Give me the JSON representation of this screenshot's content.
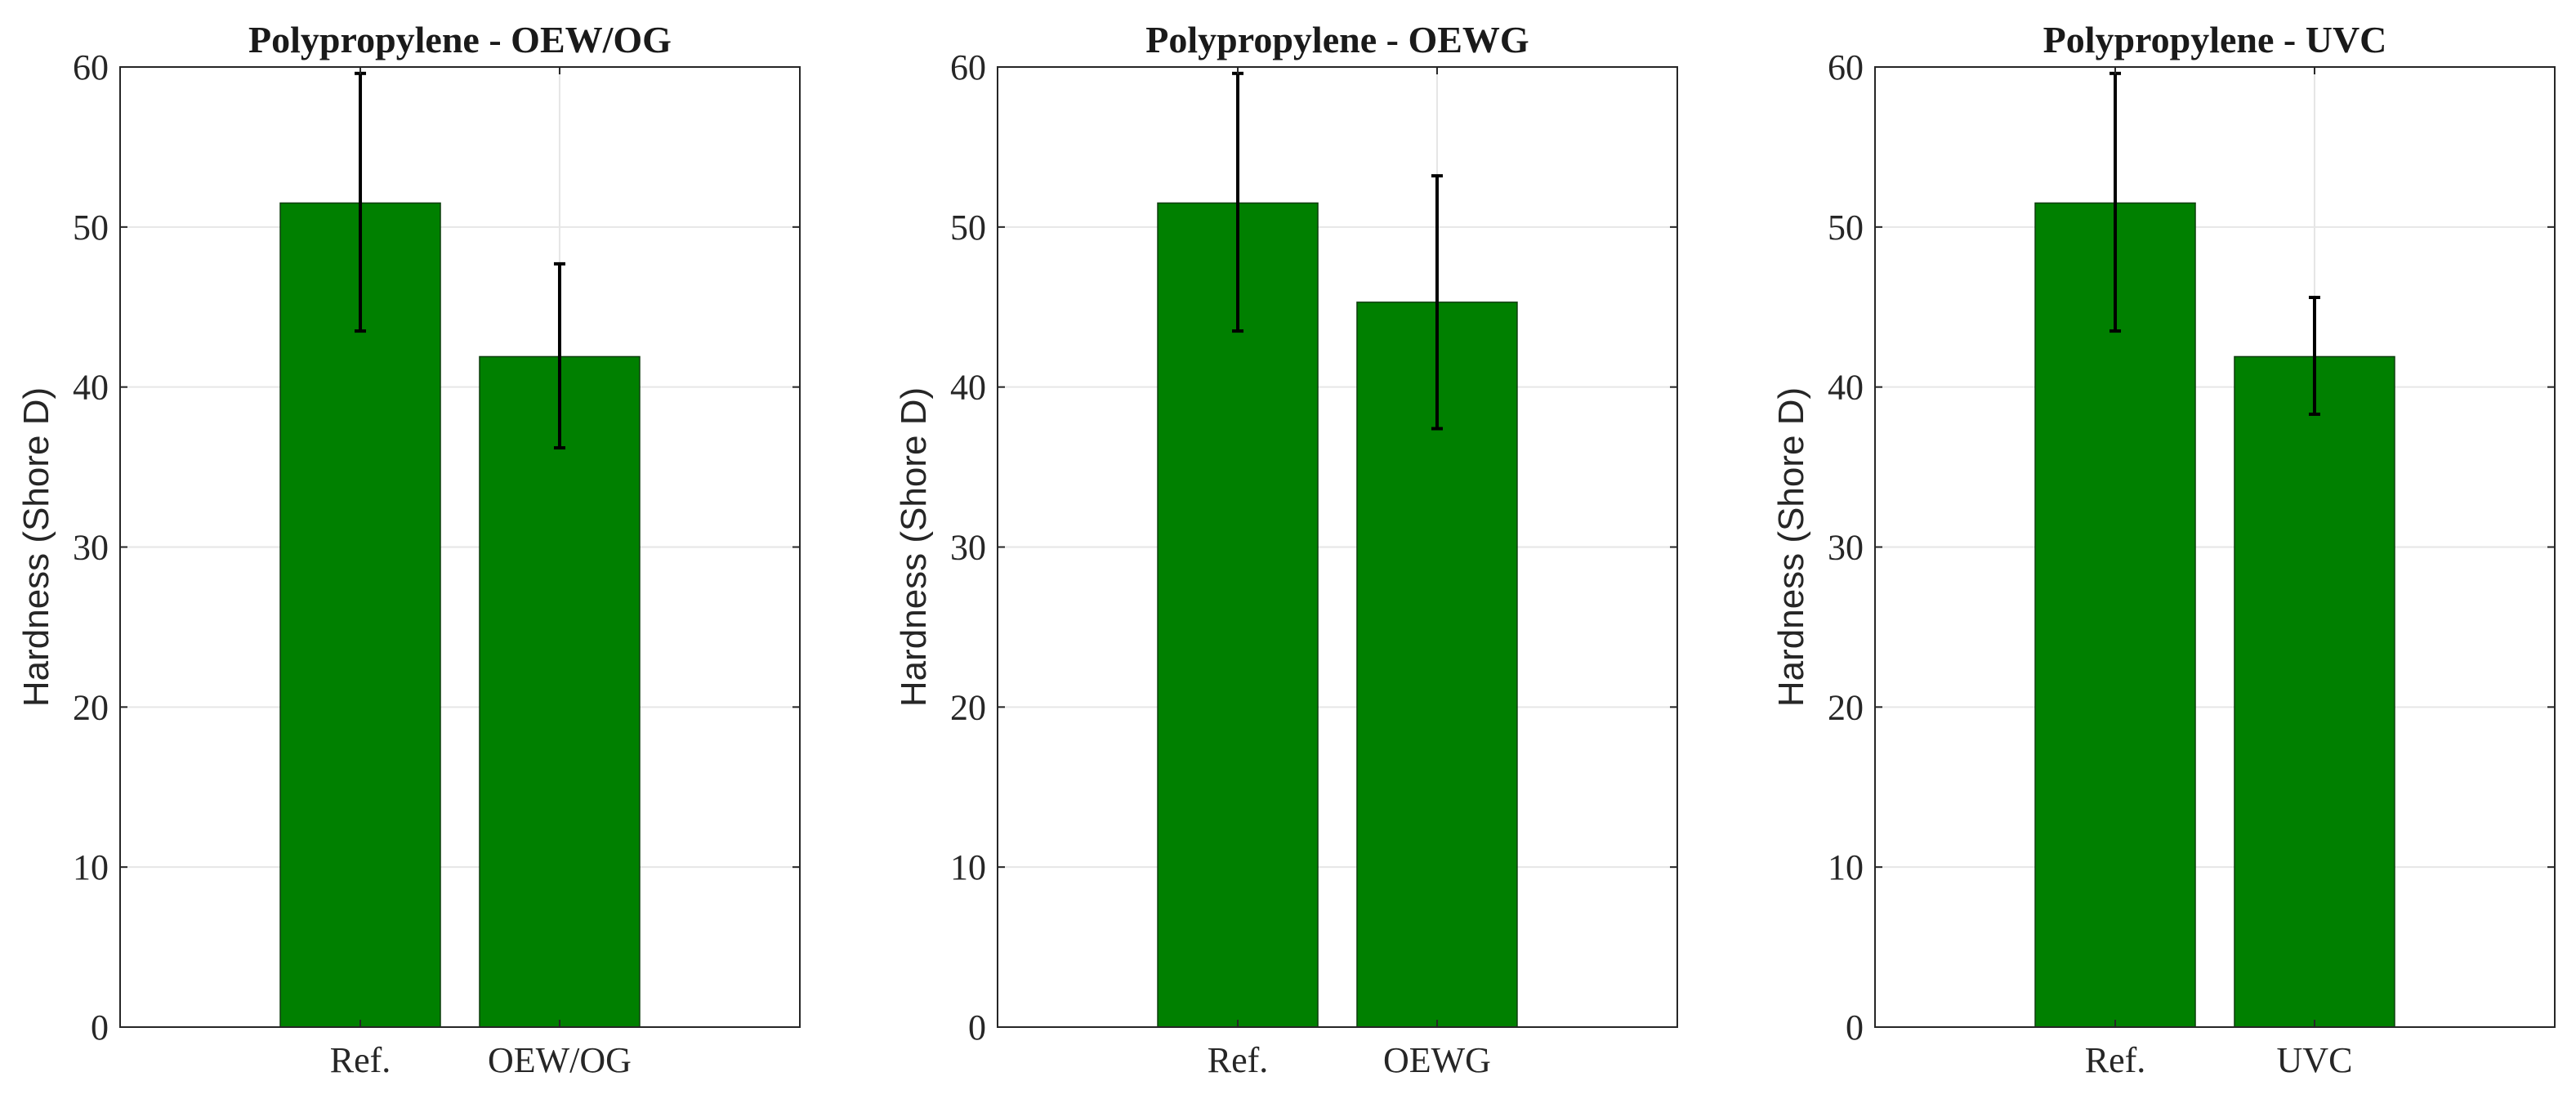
{
  "chart_data": [
    {
      "type": "bar",
      "title": "Polypropylene - OEW/OG",
      "ylabel": "Hardness (Shore D)",
      "xlabel": "",
      "categories": [
        "Ref.",
        "OEW/OG"
      ],
      "values": [
        51.5,
        41.9
      ],
      "error_low": [
        43.5,
        36.2
      ],
      "error_high": [
        59.6,
        47.7
      ],
      "ylim": [
        0,
        60
      ],
      "yticks": [
        0,
        10,
        20,
        30,
        40,
        50,
        60
      ],
      "grid": true,
      "bar_color": "#008000"
    },
    {
      "type": "bar",
      "title": "Polypropylene - OEWG",
      "ylabel": "Hardness (Shore D)",
      "xlabel": "",
      "categories": [
        "Ref.",
        "OEWG"
      ],
      "values": [
        51.5,
        45.3
      ],
      "error_low": [
        43.5,
        37.4
      ],
      "error_high": [
        59.6,
        53.2
      ],
      "ylim": [
        0,
        60
      ],
      "yticks": [
        0,
        10,
        20,
        30,
        40,
        50,
        60
      ],
      "grid": true,
      "bar_color": "#008000"
    },
    {
      "type": "bar",
      "title": "Polypropylene - UVC",
      "ylabel": "Hardness (Shore D)",
      "xlabel": "",
      "categories": [
        "Ref.",
        "UVC"
      ],
      "values": [
        51.5,
        41.9
      ],
      "error_low": [
        43.5,
        38.3
      ],
      "error_high": [
        59.6,
        45.6
      ],
      "ylim": [
        0,
        60
      ],
      "yticks": [
        0,
        10,
        20,
        30,
        40,
        50,
        60
      ],
      "grid": true,
      "bar_color": "#008000"
    }
  ]
}
